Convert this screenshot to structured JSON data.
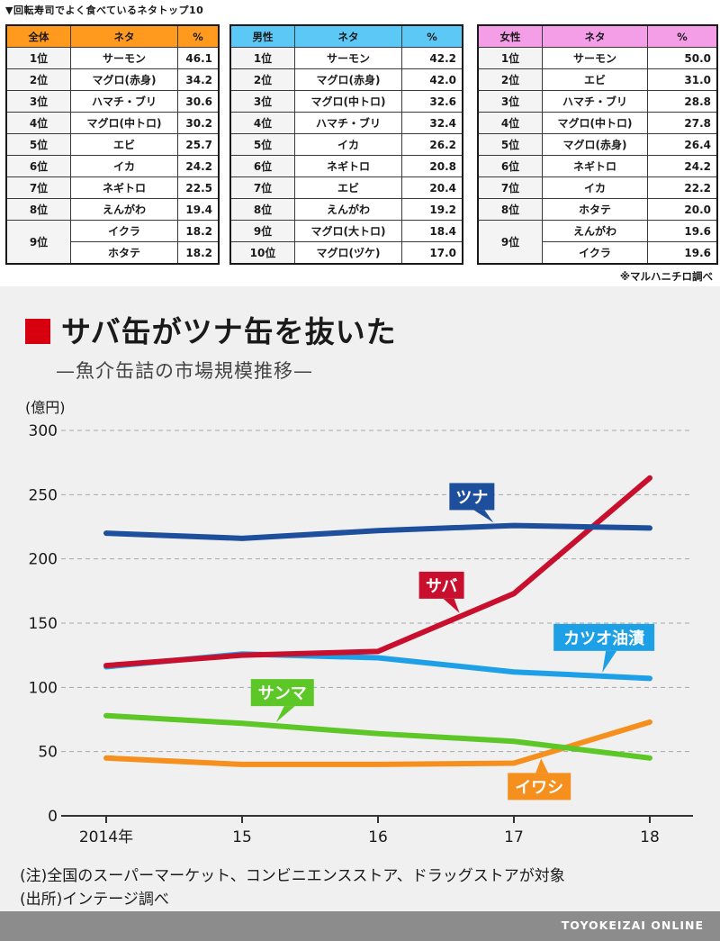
{
  "ranking": {
    "title": "▼回転寿司でよく食べているネタトップ10",
    "source": "※マルハニチロ調べ",
    "tables": [
      {
        "key": "all",
        "header": [
          "全体",
          "ネタ",
          "%"
        ],
        "header_color": "#ff9a1f",
        "rows": [
          {
            "rank": "1位",
            "items": [
              "サーモン"
            ],
            "values": [
              "46.1"
            ]
          },
          {
            "rank": "2位",
            "items": [
              "マグロ(赤身)"
            ],
            "values": [
              "34.2"
            ]
          },
          {
            "rank": "3位",
            "items": [
              "ハマチ・ブリ"
            ],
            "values": [
              "30.6"
            ]
          },
          {
            "rank": "4位",
            "items": [
              "マグロ(中トロ)"
            ],
            "values": [
              "30.2"
            ]
          },
          {
            "rank": "5位",
            "items": [
              "エビ"
            ],
            "values": [
              "25.7"
            ]
          },
          {
            "rank": "6位",
            "items": [
              "イカ"
            ],
            "values": [
              "24.2"
            ]
          },
          {
            "rank": "7位",
            "items": [
              "ネギトロ"
            ],
            "values": [
              "22.5"
            ]
          },
          {
            "rank": "8位",
            "items": [
              "えんがわ"
            ],
            "values": [
              "19.4"
            ]
          },
          {
            "rank": "9位",
            "items": [
              "イクラ",
              "ホタテ"
            ],
            "values": [
              "18.2",
              "18.2"
            ]
          }
        ]
      },
      {
        "key": "male",
        "header": [
          "男性",
          "ネタ",
          "%"
        ],
        "header_color": "#5bc8f5",
        "rows": [
          {
            "rank": "1位",
            "items": [
              "サーモン"
            ],
            "values": [
              "42.2"
            ]
          },
          {
            "rank": "2位",
            "items": [
              "マグロ(赤身)"
            ],
            "values": [
              "42.0"
            ]
          },
          {
            "rank": "3位",
            "items": [
              "マグロ(中トロ)"
            ],
            "values": [
              "32.6"
            ]
          },
          {
            "rank": "4位",
            "items": [
              "ハマチ・ブリ"
            ],
            "values": [
              "32.4"
            ]
          },
          {
            "rank": "5位",
            "items": [
              "イカ"
            ],
            "values": [
              "26.2"
            ]
          },
          {
            "rank": "6位",
            "items": [
              "ネギトロ"
            ],
            "values": [
              "20.8"
            ]
          },
          {
            "rank": "7位",
            "items": [
              "エビ"
            ],
            "values": [
              "20.4"
            ]
          },
          {
            "rank": "8位",
            "items": [
              "えんがわ"
            ],
            "values": [
              "19.2"
            ]
          },
          {
            "rank": "9位",
            "items": [
              "マグロ(大トロ)"
            ],
            "values": [
              "18.4"
            ]
          },
          {
            "rank": "10位",
            "items": [
              "マグロ(ヅケ)"
            ],
            "values": [
              "17.0"
            ]
          }
        ]
      },
      {
        "key": "female",
        "header": [
          "女性",
          "ネタ",
          "%"
        ],
        "header_color": "#f59ee8",
        "rows": [
          {
            "rank": "1位",
            "items": [
              "サーモン"
            ],
            "values": [
              "50.0"
            ]
          },
          {
            "rank": "2位",
            "items": [
              "エビ"
            ],
            "values": [
              "31.0"
            ]
          },
          {
            "rank": "3位",
            "items": [
              "ハマチ・ブリ"
            ],
            "values": [
              "28.8"
            ]
          },
          {
            "rank": "4位",
            "items": [
              "マグロ(中トロ)"
            ],
            "values": [
              "27.8"
            ]
          },
          {
            "rank": "5位",
            "items": [
              "マグロ(赤身)"
            ],
            "values": [
              "26.4"
            ]
          },
          {
            "rank": "6位",
            "items": [
              "ネギトロ"
            ],
            "values": [
              "24.2"
            ]
          },
          {
            "rank": "7位",
            "items": [
              "イカ"
            ],
            "values": [
              "22.2"
            ]
          },
          {
            "rank": "8位",
            "items": [
              "ホタテ"
            ],
            "values": [
              "20.0"
            ]
          },
          {
            "rank": "9位",
            "items": [
              "えんがわ",
              "イクラ"
            ],
            "values": [
              "19.6",
              "19.6"
            ]
          }
        ]
      }
    ]
  },
  "chart_data": {
    "type": "line",
    "title": "サバ缶がツナ缶を抜いた",
    "subtitle": "—魚介缶詰の市場規模推移—",
    "ylabel": "(億円)",
    "xlabel": "",
    "ylim": [
      0,
      300
    ],
    "yticks": [
      0,
      50,
      100,
      150,
      200,
      250,
      300
    ],
    "grid": true,
    "categories": [
      "2014年",
      "15",
      "16",
      "17",
      "18"
    ],
    "series": [
      {
        "name": "ツナ",
        "color": "#1e4f9c",
        "label_text_color": "#ffffff",
        "values": [
          220,
          216,
          222,
          226,
          224
        ]
      },
      {
        "name": "サバ",
        "color": "#c8102e",
        "label_text_color": "#ffffff",
        "values": [
          117,
          125,
          128,
          173,
          263
        ]
      },
      {
        "name": "カツオ油漬",
        "color": "#1ea0e6",
        "label_text_color": "#ffffff",
        "values": [
          116,
          126,
          123,
          112,
          107
        ]
      },
      {
        "name": "サンマ",
        "color": "#5cc727",
        "label_text_color": "#ffffff",
        "values": [
          78,
          72,
          64,
          58,
          45
        ]
      },
      {
        "name": "イワシ",
        "color": "#f5901e",
        "label_text_color": "#ffffff",
        "values": [
          45,
          40,
          40,
          41,
          73
        ]
      }
    ],
    "notes": [
      "(注)全国のスーパーマーケット、コンビニエンスストア、ドラッグストアが対象",
      "(出所)インテージ調べ"
    ]
  },
  "footer": {
    "brand": "TOYOKEIZAI ONLINE"
  },
  "colors": {
    "title_accent": "#d6000f",
    "footer_bg": "#8c8c8c",
    "chart_bg": "#f0f0f0"
  }
}
